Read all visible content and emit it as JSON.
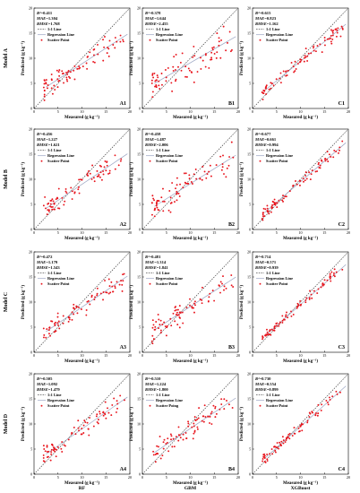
{
  "chart_data": {
    "type": "scatter",
    "layout": "4 rows x 3 columns",
    "row_labels": [
      "Model A",
      "Model B",
      "Model C",
      "Model D"
    ],
    "column_labels": [
      "RF",
      "GBM",
      "XGBoost"
    ],
    "xlabel": "Measured (g kg⁻¹)",
    "ylabel": "Predicted (g kg⁻¹)",
    "xlim": [
      0,
      20
    ],
    "ylim": [
      0,
      20
    ],
    "xticks": [
      0,
      5,
      10,
      15,
      20
    ],
    "yticks": [
      0,
      5,
      10,
      15,
      20
    ],
    "legend": {
      "position": "top-left",
      "entries": [
        "1:1 Line",
        "Regression Line",
        "Scatter Point"
      ],
      "gbm_row_d_entry": "Scatter Poing"
    },
    "metric_labels": [
      "R²",
      "MAE",
      "RMSE"
    ],
    "colors": {
      "scatter": "#e8141c",
      "regression": "#9aa4c2",
      "identity": "#333333"
    },
    "panels": [
      {
        "id": "A1",
        "row": 0,
        "col": 0,
        "r2": "0.411",
        "mae": "1.304",
        "rmse": "1.768",
        "slope": 0.62,
        "intercept": 2.7,
        "noise": 1.7
      },
      {
        "id": "B1",
        "row": 0,
        "col": 1,
        "r2": "0.378",
        "mae": "1.644",
        "rmse": "2.455",
        "slope": 0.55,
        "intercept": 3.6,
        "noise": 2.4
      },
      {
        "id": "C1",
        "row": 0,
        "col": 2,
        "r2": "0.615",
        "mae": "0.823",
        "rmse": "1.162",
        "slope": 0.78,
        "intercept": 1.6,
        "noise": 1.0
      },
      {
        "id": "A2",
        "row": 1,
        "col": 0,
        "r2": "0.456",
        "mae": "1.227",
        "rmse": "1.621",
        "slope": 0.64,
        "intercept": 2.6,
        "noise": 1.6
      },
      {
        "id": "B2",
        "row": 1,
        "col": 1,
        "r2": "0.458",
        "mae": "1.487",
        "rmse": "2.006",
        "slope": 0.6,
        "intercept": 3.1,
        "noise": 2.0
      },
      {
        "id": "C2",
        "row": 1,
        "col": 2,
        "r2": "0.677",
        "mae": "0.661",
        "rmse": "0.994",
        "slope": 0.82,
        "intercept": 1.3,
        "noise": 0.9
      },
      {
        "id": "A3",
        "row": 2,
        "col": 0,
        "r2": "0.472",
        "mae": "1.179",
        "rmse": "1.543",
        "slope": 0.65,
        "intercept": 2.5,
        "noise": 1.5
      },
      {
        "id": "B3",
        "row": 2,
        "col": 1,
        "r2": "0.481",
        "mae": "1.314",
        "rmse": "1.841",
        "slope": 0.62,
        "intercept": 2.9,
        "noise": 1.8
      },
      {
        "id": "C3",
        "row": 2,
        "col": 2,
        "r2": "0.714",
        "mae": "0.571",
        "rmse": "0.939",
        "slope": 0.84,
        "intercept": 1.1,
        "noise": 0.85
      },
      {
        "id": "A4",
        "row": 3,
        "col": 0,
        "r2": "0.505",
        "mae": "1.092",
        "rmse": "1.479",
        "slope": 0.67,
        "intercept": 2.3,
        "noise": 1.45
      },
      {
        "id": "B4",
        "row": 3,
        "col": 1,
        "r2": "0.510",
        "mae": "1.224",
        "rmse": "1.800",
        "slope": 0.64,
        "intercept": 2.7,
        "noise": 1.7
      },
      {
        "id": "C4",
        "row": 3,
        "col": 2,
        "r2": "0.730",
        "mae": "0.554",
        "rmse": "0.899",
        "slope": 0.85,
        "intercept": 1.0,
        "noise": 0.8
      }
    ]
  }
}
